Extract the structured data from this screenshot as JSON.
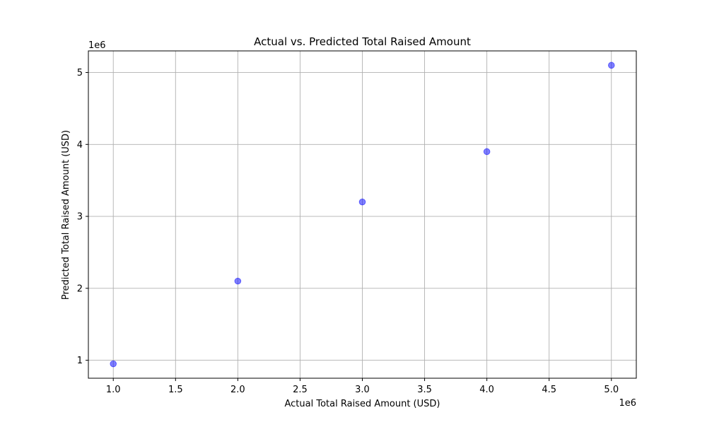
{
  "chart_data": {
    "type": "scatter",
    "title": "Actual vs. Predicted Total Raised Amount",
    "xlabel": "Actual Total Raised Amount (USD)",
    "ylabel": "Predicted Total Raised Amount (USD)",
    "x_offset_label": "1e6",
    "y_offset_label": "1e6",
    "xlim": [
      800000,
      5200000
    ],
    "ylim": [
      750000,
      5300000
    ],
    "x_ticks": [
      1000000,
      1500000,
      2000000,
      2500000,
      3000000,
      3500000,
      4000000,
      4500000,
      5000000
    ],
    "x_tick_labels": [
      "1.0",
      "1.5",
      "2.0",
      "2.5",
      "3.0",
      "3.5",
      "4.0",
      "4.5",
      "5.0"
    ],
    "y_ticks": [
      1000000,
      2000000,
      3000000,
      4000000,
      5000000
    ],
    "y_tick_labels": [
      "1",
      "2",
      "3",
      "4",
      "5"
    ],
    "grid": true,
    "marker_color": "#0000ff",
    "marker_opacity": 0.5,
    "points": [
      {
        "x": 1000000,
        "y": 950000
      },
      {
        "x": 2000000,
        "y": 2100000
      },
      {
        "x": 3000000,
        "y": 3200000
      },
      {
        "x": 4000000,
        "y": 3900000
      },
      {
        "x": 5000000,
        "y": 5100000
      }
    ]
  }
}
